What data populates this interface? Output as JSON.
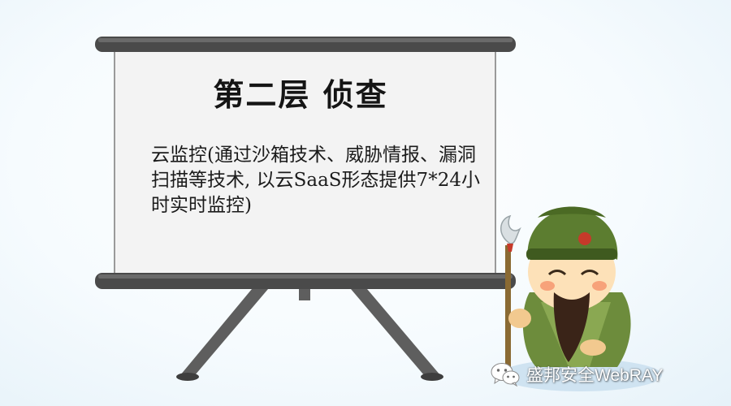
{
  "board": {
    "title": "第二层  侦查",
    "description": "云监控(通过沙箱技术、威胁情报、漏洞扫描等技术, 以云SaaS形态提供7*24小时实时监控)"
  },
  "watermark": {
    "icon": "wechat-icon",
    "text": "盛邦安全WebRAY"
  },
  "colors": {
    "background": "#f6fbfe",
    "board_frame": "#4a4a4a",
    "board_surface": "#f4f4f4",
    "character_uniform": "#6d8c3c"
  }
}
